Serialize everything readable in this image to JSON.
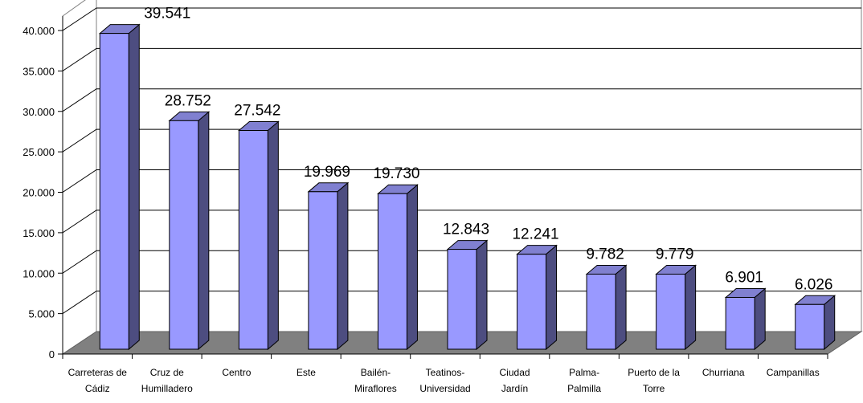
{
  "chart_data": {
    "type": "bar",
    "title": "",
    "xlabel": "",
    "ylabel": "",
    "ylim": [
      0,
      40000
    ],
    "yticks": [
      0,
      5000,
      10000,
      15000,
      20000,
      25000,
      30000,
      35000,
      40000
    ],
    "ytick_labels": [
      "0",
      "5.000",
      "10.000",
      "15.000",
      "20.000",
      "25.000",
      "30.000",
      "35.000",
      "40.000"
    ],
    "grid": true,
    "three_d": true,
    "categories": [
      [
        "Carreteras de",
        "Cádiz"
      ],
      [
        "Cruz de",
        "Humilladero"
      ],
      [
        "Centro"
      ],
      [
        "Este"
      ],
      [
        "Bailén-",
        "Miraflores"
      ],
      [
        "Teatinos-",
        "Universidad"
      ],
      [
        "Ciudad",
        "Jardín"
      ],
      [
        "Palma-",
        "Palmilla"
      ],
      [
        "Puerto de la",
        "Torre"
      ],
      [
        "Churriana"
      ],
      [
        "Campanillas"
      ]
    ],
    "values": [
      39541,
      28752,
      27542,
      19969,
      19730,
      12843,
      12241,
      9782,
      9779,
      6901,
      6026
    ],
    "data_labels": [
      "39.541",
      "28.752",
      "27.542",
      "19.969",
      "19.730",
      "12.843",
      "12.241",
      "9.782",
      "9.779",
      "6.901",
      "6.026"
    ],
    "colors": {
      "bar_front": "#9999ff",
      "bar_side": "#4d4d80",
      "bar_top": "#8080d0",
      "floor": "#808080",
      "wall": "#ffffff",
      "grid": "#000000"
    }
  }
}
